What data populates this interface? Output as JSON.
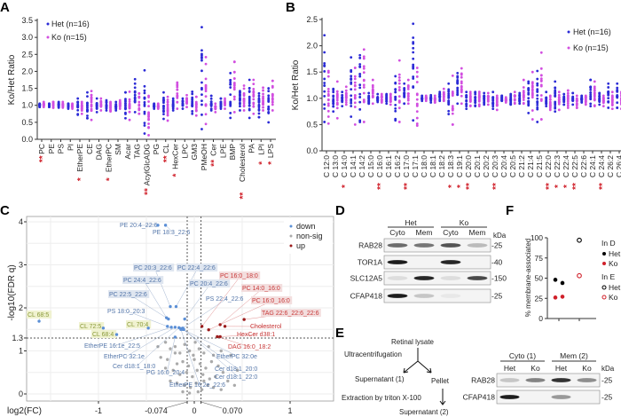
{
  "panels": {
    "A": "A",
    "B": "B",
    "C": "C",
    "D": "D",
    "E": "E",
    "F": "F"
  },
  "colors": {
    "het": "#2b2bd6",
    "ko": "#d24fe0",
    "down": "#5b8fd6",
    "nonsig": "#aaaaaa",
    "up": "#9b1b1b",
    "star": "#d0202a",
    "ko_f": "#d0202a"
  },
  "chart_data": [
    {
      "type": "scatter",
      "panel": "A",
      "ylabel": "Ko/Het Ratio",
      "ylim": [
        0,
        3.5
      ],
      "yticks": [
        "0.0",
        "0.5",
        "1.0",
        "1.5",
        "2.0",
        "2.5",
        "3.0",
        "3.5"
      ],
      "legend": [
        "Het (n=16)",
        "Ko (n=15)"
      ],
      "legend_placement": "top-left",
      "categories": [
        "PC",
        "PE",
        "PS",
        "PI",
        "EtherPE",
        "CE",
        "DAG",
        "EtherPC",
        "SM",
        "Acar",
        "TAG",
        "AcylGlcADG",
        "PG",
        "CL",
        "HexCer",
        "LPC",
        "GM3",
        "PMeOH",
        "Cer",
        "LPE",
        "BMP",
        "Cholesterol",
        "PA",
        "LPI",
        "LPS"
      ],
      "significance": [
        "**",
        "",
        "",
        "",
        "*",
        "",
        "",
        "*",
        "",
        "",
        "",
        "**",
        "",
        "**",
        "*",
        "",
        "",
        "",
        "**",
        "",
        "",
        "**",
        "",
        "*",
        "*"
      ],
      "het_range": [
        [
          0.95,
          1.05
        ],
        [
          0.95,
          1.05
        ],
        [
          0.93,
          1.1
        ],
        [
          0.9,
          1.05
        ],
        [
          0.72,
          1.2
        ],
        [
          0.62,
          1.38
        ],
        [
          0.8,
          1.2
        ],
        [
          0.85,
          1.15
        ],
        [
          0.85,
          1.1
        ],
        [
          0.62,
          1.38
        ],
        [
          0.8,
          1.77
        ],
        [
          0.17,
          2.03
        ],
        [
          0.9,
          1.05
        ],
        [
          0.6,
          1.38
        ],
        [
          0.85,
          1.2
        ],
        [
          0.9,
          1.2
        ],
        [
          0.75,
          1.4
        ],
        [
          0.3,
          3.3
        ],
        [
          0.85,
          1.28
        ],
        [
          0.9,
          1.2
        ],
        [
          0.63,
          1.95
        ],
        [
          0.85,
          1.42
        ],
        [
          0.63,
          1.75
        ],
        [
          0.65,
          1.35
        ],
        [
          0.5,
          1.5
        ]
      ],
      "ko_range": [
        [
          0.95,
          1.1
        ],
        [
          0.93,
          1.1
        ],
        [
          0.93,
          1.1
        ],
        [
          0.9,
          1.05
        ],
        [
          0.75,
          1.1
        ],
        [
          0.57,
          1.42
        ],
        [
          0.85,
          1.2
        ],
        [
          0.82,
          1.1
        ],
        [
          0.9,
          1.15
        ],
        [
          0.57,
          1.4
        ],
        [
          0.75,
          1.35
        ],
        [
          0.12,
          1.28
        ],
        [
          0.9,
          1.05
        ],
        [
          0.55,
          1.25
        ],
        [
          0.9,
          1.67
        ],
        [
          0.95,
          1.3
        ],
        [
          0.7,
          1.25
        ],
        [
          0.45,
          2.42
        ],
        [
          0.8,
          1.05
        ],
        [
          0.9,
          1.2
        ],
        [
          0.8,
          2.28
        ],
        [
          0.85,
          1.58
        ],
        [
          0.75,
          1.75
        ],
        [
          0.85,
          1.52
        ],
        [
          0.85,
          1.72
        ]
      ]
    },
    {
      "type": "scatter",
      "panel": "B",
      "ylabel": "Ko/Het Ratio",
      "ylim": [
        0,
        2.5
      ],
      "yticks": [
        "0.0",
        "0.5",
        "1.0",
        "1.5",
        "2.0",
        "2.5"
      ],
      "legend": [
        "Het (n=16)",
        "Ko (n=15)"
      ],
      "legend_placement": "top-right",
      "categories": [
        "C 12:0",
        "C 13:0",
        "C 14:0",
        "C 14:1",
        "C 14:2",
        "C 15:0",
        "C 16:0",
        "C 16:1",
        "C 16:2",
        "C 17:0",
        "C 17:1",
        "C 18:0",
        "C 18:1",
        "C 18:2",
        "C 18:3",
        "C 19:1",
        "C 20:0",
        "C 20:1",
        "C 20:2",
        "C 20:3",
        "C 20:4",
        "C 20:5",
        "C 21:2",
        "C 21:4",
        "C 21:5",
        "C 22:0",
        "C 22:3",
        "C 22:4",
        "C 22:5",
        "C 22:6",
        "C 24:1",
        "C 24:4",
        "C 26:2",
        "C 26:4"
      ],
      "significance": [
        "",
        "",
        "*",
        "",
        "",
        "",
        "**",
        "",
        "",
        "**",
        "",
        "",
        "",
        "",
        "*",
        "*",
        "**",
        "",
        "",
        "**",
        "",
        "",
        "",
        "",
        "",
        "**",
        "*",
        "*",
        "**",
        "",
        "",
        "**",
        "",
        ""
      ],
      "het_range": [
        [
          0.55,
          2.2
        ],
        [
          0.75,
          1.18
        ],
        [
          0.85,
          1.12
        ],
        [
          0.65,
          1.78
        ],
        [
          0.55,
          1.82
        ],
        [
          0.9,
          1.1
        ],
        [
          0.93,
          1.08
        ],
        [
          0.9,
          1.08
        ],
        [
          0.58,
          1.42
        ],
        [
          0.9,
          1.28
        ],
        [
          0.58,
          2.42
        ],
        [
          0.95,
          1.05
        ],
        [
          0.92,
          1.06
        ],
        [
          0.95,
          1.12
        ],
        [
          0.7,
          1.28
        ],
        [
          0.9,
          1.48
        ],
        [
          0.8,
          1.12
        ],
        [
          0.85,
          1.12
        ],
        [
          0.88,
          1.1
        ],
        [
          0.8,
          1.12
        ],
        [
          0.95,
          1.05
        ],
        [
          0.88,
          1.08
        ],
        [
          0.9,
          1.1
        ],
        [
          0.72,
          1.32
        ],
        [
          0.55,
          1.52
        ],
        [
          0.85,
          1.12
        ],
        [
          0.75,
          1.32
        ],
        [
          0.88,
          1.08
        ],
        [
          0.88,
          1.1
        ],
        [
          0.92,
          1.05
        ],
        [
          0.85,
          1.35
        ],
        [
          0.88,
          1.1
        ],
        [
          0.82,
          1.28
        ],
        [
          0.82,
          1.28
        ]
      ],
      "ko_range": [
        [
          0.52,
          1.52
        ],
        [
          0.62,
          1.32
        ],
        [
          0.88,
          1.22
        ],
        [
          0.5,
          1.58
        ],
        [
          0.55,
          1.93
        ],
        [
          0.9,
          1.35
        ],
        [
          0.92,
          1.08
        ],
        [
          0.88,
          1.08
        ],
        [
          0.55,
          1.72
        ],
        [
          0.9,
          1.35
        ],
        [
          0.48,
          1.58
        ],
        [
          0.95,
          1.05
        ],
        [
          0.92,
          1.05
        ],
        [
          0.95,
          1.18
        ],
        [
          0.5,
          1.43
        ],
        [
          0.9,
          1.57
        ],
        [
          0.85,
          1.12
        ],
        [
          0.85,
          1.12
        ],
        [
          0.88,
          1.1
        ],
        [
          0.78,
          1.05
        ],
        [
          0.92,
          1.02
        ],
        [
          0.9,
          1.12
        ],
        [
          0.9,
          1.35
        ],
        [
          0.6,
          1.5
        ],
        [
          0.6,
          1.87
        ],
        [
          0.78,
          1.05
        ],
        [
          0.78,
          1.12
        ],
        [
          0.82,
          1.15
        ],
        [
          0.82,
          1.05
        ],
        [
          0.88,
          1.05
        ],
        [
          0.85,
          1.32
        ],
        [
          0.85,
          1.05
        ],
        [
          0.8,
          1.12
        ],
        [
          0.8,
          1.12
        ]
      ]
    },
    {
      "type": "scatter",
      "panel": "C",
      "xlabel": "log2(FC)",
      "ylabel": "-log10(FDR q)",
      "xticks": [
        "-1",
        "-0.074",
        "0",
        "0.070",
        "1"
      ],
      "xtick_values": [
        -1,
        -0.074,
        0,
        0.07,
        1
      ],
      "yticks": [
        "0",
        "1",
        "1.3",
        "2",
        "3",
        "4"
      ],
      "ytick_values": [
        0,
        1,
        1.3,
        2,
        3,
        4
      ],
      "xlim": [
        -1.8,
        1.45
      ],
      "ylim": [
        -0.2,
        4.1
      ],
      "thresholds": {
        "x": [
          -0.074,
          0.07
        ],
        "y": 1.3
      },
      "grid": true,
      "legend": [
        "down",
        "non-sig",
        "up"
      ],
      "legend_placement": "top-right",
      "labeled_points": [
        {
          "label": "PE 20:4_22:6",
          "x": -0.38,
          "y": 3.92,
          "group": "down"
        },
        {
          "label": "PE 18:3_22:6",
          "x": -0.3,
          "y": 3.92,
          "group": "down"
        },
        {
          "label": "PC 20:3_22:6",
          "x": -0.25,
          "y": 2.03,
          "group": "down"
        },
        {
          "label": "PC 22:4_22:6",
          "x": -0.19,
          "y": 2.03,
          "group": "down"
        },
        {
          "label": "PC 24:4_22:6",
          "x": -0.29,
          "y": 1.77,
          "group": "down"
        },
        {
          "label": "PC 20:4_22:6",
          "x": -0.1,
          "y": 1.74,
          "group": "down"
        },
        {
          "label": "PC 22:5_22:6",
          "x": -0.27,
          "y": 1.74,
          "group": "down"
        },
        {
          "label": "PS 22:4_22:6",
          "x": -0.12,
          "y": 1.53,
          "group": "down"
        },
        {
          "label": "PS 18:0_20:3",
          "x": -0.28,
          "y": 1.57,
          "group": "down"
        },
        {
          "label": "CL 68:5",
          "x": -1.62,
          "y": 1.69,
          "group": "down"
        },
        {
          "label": "CL 72:5",
          "x": -0.95,
          "y": 1.53,
          "group": "down"
        },
        {
          "label": "CL 70:4",
          "x": -0.48,
          "y": 1.53,
          "group": "down"
        },
        {
          "label": "CL 68:4",
          "x": -0.81,
          "y": 1.38,
          "group": "down"
        },
        {
          "label": "EtherPE 16:1e_22:5",
          "x": -0.24,
          "y": 1.55,
          "group": "down"
        },
        {
          "label": "EtherPC 32:1e",
          "x": -0.2,
          "y": 1.55,
          "group": "down"
        },
        {
          "label": "Cer d18:1_18:0",
          "x": -0.16,
          "y": 1.54,
          "group": "down"
        },
        {
          "label": "PG 16:0_20:4",
          "x": -0.2,
          "y": 1.32,
          "group": "down"
        },
        {
          "label": "EtherPE 16:2e_22:6",
          "x": -0.14,
          "y": 1.5,
          "group": "down"
        },
        {
          "label": "EtherPC 32:0e",
          "x": -0.14,
          "y": 1.52,
          "group": "down"
        },
        {
          "label": "Cer d18:1_20:0",
          "x": -0.12,
          "y": 1.5,
          "group": "down"
        },
        {
          "label": "Cer d18:1_22:0",
          "x": -0.11,
          "y": 1.5,
          "group": "down"
        },
        {
          "label": "PC 16:0_18:0",
          "x": 0.08,
          "y": 1.57,
          "group": "up"
        },
        {
          "label": "PC 14:0_16:0",
          "x": 0.27,
          "y": 1.61,
          "group": "up"
        },
        {
          "label": "PC 16:0_16:0",
          "x": 0.15,
          "y": 1.49,
          "group": "up"
        },
        {
          "label": "TAG 22:6_22:6_22:6",
          "x": 0.52,
          "y": 1.73,
          "group": "up"
        },
        {
          "label": "Cholesterol",
          "x": 0.32,
          "y": 1.57,
          "group": "up"
        },
        {
          "label": "HexCer d38:1",
          "x": 0.27,
          "y": 1.33,
          "group": "up"
        },
        {
          "label": "DAG 16:0_18:2",
          "x": 0.24,
          "y": 1.33,
          "group": "up"
        }
      ],
      "nonsig_points": [
        [
          -0.3,
          1.2
        ],
        [
          -0.25,
          1.05
        ],
        [
          -0.2,
          1.1
        ],
        [
          -0.15,
          0.95
        ],
        [
          -0.1,
          1.15
        ],
        [
          -0.05,
          1.0
        ],
        [
          0.05,
          1.05
        ],
        [
          0.1,
          0.95
        ],
        [
          0.15,
          1.1
        ],
        [
          0.2,
          0.9
        ],
        [
          -0.35,
          0.85
        ],
        [
          -0.28,
          0.8
        ],
        [
          -0.18,
          0.7
        ],
        [
          -0.12,
          0.75
        ],
        [
          -0.06,
          0.65
        ],
        [
          0.0,
          0.8
        ],
        [
          0.06,
          0.7
        ],
        [
          0.12,
          0.6
        ],
        [
          0.18,
          0.75
        ],
        [
          0.25,
          0.65
        ],
        [
          0.3,
          0.5
        ],
        [
          -0.22,
          0.55
        ],
        [
          -0.15,
          0.45
        ],
        [
          -0.08,
          0.5
        ],
        [
          -0.02,
          0.4
        ],
        [
          0.03,
          0.55
        ],
        [
          0.09,
          0.45
        ],
        [
          0.16,
          0.35
        ],
        [
          0.22,
          0.4
        ],
        [
          0.35,
          0.3
        ],
        [
          -0.25,
          0.3
        ],
        [
          -0.18,
          0.25
        ],
        [
          -0.1,
          0.2
        ],
        [
          -0.04,
          0.15
        ],
        [
          0.02,
          0.25
        ],
        [
          0.08,
          0.1
        ],
        [
          0.14,
          0.2
        ],
        [
          0.2,
          0.15
        ],
        [
          0.28,
          0.1
        ],
        [
          0.42,
          0.2
        ],
        [
          -0.12,
          0.05
        ],
        [
          -0.05,
          0.02
        ],
        [
          0.04,
          0.05
        ],
        [
          0.1,
          0.3
        ],
        [
          -0.3,
          0.6
        ],
        [
          -0.38,
          1.1
        ],
        [
          0.38,
          0.9
        ],
        [
          0.45,
          0.55
        ],
        [
          -0.01,
          0.9
        ],
        [
          0.01,
          1.2
        ],
        [
          -0.2,
          0.95
        ],
        [
          0.28,
          1.0
        ]
      ]
    },
    {
      "type": "scatter",
      "panel": "F",
      "ylabel": "% membrane-associated",
      "ylim": [
        0,
        100
      ],
      "yticks": [
        "0",
        "25",
        "50",
        "75",
        "100"
      ],
      "legend_groups": [
        {
          "title": "In D",
          "items": [
            {
              "label": "Het",
              "style": "filled",
              "color": "#000000"
            },
            {
              "label": "Ko",
              "style": "filled",
              "color": "#d0202a"
            }
          ]
        },
        {
          "title": "In E",
          "items": [
            {
              "label": "Het",
              "style": "open",
              "color": "#000000"
            },
            {
              "label": "Ko",
              "style": "open",
              "color": "#d0202a"
            }
          ]
        }
      ],
      "legend_placement": "right",
      "series": [
        {
          "name": "In D Het",
          "values": [
            48,
            44
          ],
          "group": 0
        },
        {
          "name": "In D Ko",
          "values": [
            26,
            27
          ],
          "group": 0
        },
        {
          "name": "In E Het",
          "values": [
            97
          ],
          "group": 1
        },
        {
          "name": "In E Ko",
          "values": [
            53
          ],
          "group": 1
        }
      ]
    }
  ],
  "blot_d": {
    "groups": [
      "Het",
      "Ko"
    ],
    "lanes": [
      "Cyto",
      "Mem",
      "Cyto",
      "Mem"
    ],
    "kda_label": "kDa",
    "rows": [
      {
        "protein": "RAB28",
        "marker": "-25",
        "bands": [
          0.6,
          0.55,
          0.7,
          0.25
        ]
      },
      {
        "protein": "TOR1A",
        "marker": "-40",
        "bands": [
          0.95,
          0.0,
          0.9,
          0.0
        ]
      },
      {
        "protein": "SLC12A5",
        "marker": "-150",
        "bands": [
          0.1,
          0.9,
          0.1,
          0.75
        ]
      },
      {
        "protein": "CFAP418",
        "marker": "-25",
        "bands": [
          0.95,
          0.2,
          0.05,
          0.0
        ]
      }
    ]
  },
  "flow_e": {
    "lysate": "Retinal lysate",
    "step1": "Ultracentrifugation",
    "sup1": "Supernatant (1)",
    "pellet": "Pellet",
    "step2": "Extraction by triton X-100",
    "sup2": "Supernatant (2)"
  },
  "blot_e": {
    "groups": [
      "Cyto (1)",
      "Mem (2)"
    ],
    "lanes": [
      "Het",
      "Ko",
      "Het",
      "Ko"
    ],
    "kda_label": "kDa",
    "rows": [
      {
        "protein": "RAB28",
        "marker": "-25",
        "bands": [
          0.2,
          0.5,
          0.85,
          0.45
        ]
      },
      {
        "protein": "CFAP418",
        "marker": "-25",
        "bands": [
          0.95,
          0.0,
          0.4,
          0.0
        ]
      }
    ]
  }
}
